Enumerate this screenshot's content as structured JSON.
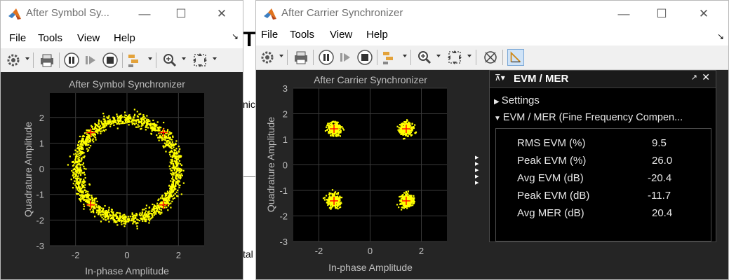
{
  "window_left": {
    "title": "After Symbol Sy...",
    "menu": [
      "File",
      "Tools",
      "View",
      "Help"
    ],
    "plot": {
      "title": "After Symbol Synchronizer",
      "xlabel": "In-phase Amplitude",
      "ylabel": "Quadrature Amplitude",
      "xticks": [
        "-2",
        "0",
        "2"
      ],
      "yticks": [
        "2",
        "1",
        "0",
        "-1",
        "-2",
        "-3"
      ]
    }
  },
  "window_right": {
    "title": "After Carrier Synchronizer",
    "menu": [
      "File",
      "Tools",
      "View",
      "Help"
    ],
    "plot": {
      "title": "After Carrier Synchronizer",
      "xlabel": "In-phase Amplitude",
      "ylabel": "Quadrature Amplitude",
      "xticks": [
        "-2",
        "0",
        "2"
      ],
      "yticks": [
        "3",
        "2",
        "1",
        "0",
        "-1",
        "-2",
        "-3"
      ]
    },
    "evm_panel": {
      "title": "EVM / MER",
      "settings_label": "Settings",
      "section_label": "EVM / MER (Fine Frequency Compen...",
      "rows": [
        {
          "label": "RMS EVM (%)",
          "value": "9.5"
        },
        {
          "label": "Peak EVM (%)",
          "value": "26.0"
        },
        {
          "label": "Avg EVM (dB)",
          "value": "-20.4"
        },
        {
          "label": "Peak EVM (dB)",
          "value": "-11.7"
        },
        {
          "label": "Avg MER (dB)",
          "value": "20.4"
        }
      ]
    }
  },
  "background_window": {
    "text_fragments": [
      "T",
      "nic",
      "tal"
    ]
  },
  "colors": {
    "plot_bg": "#000000",
    "figure_bg": "#252525",
    "signal": "#ffff00",
    "reference_marker": "#ff0000",
    "axis_text": "#bfbfbf"
  }
}
